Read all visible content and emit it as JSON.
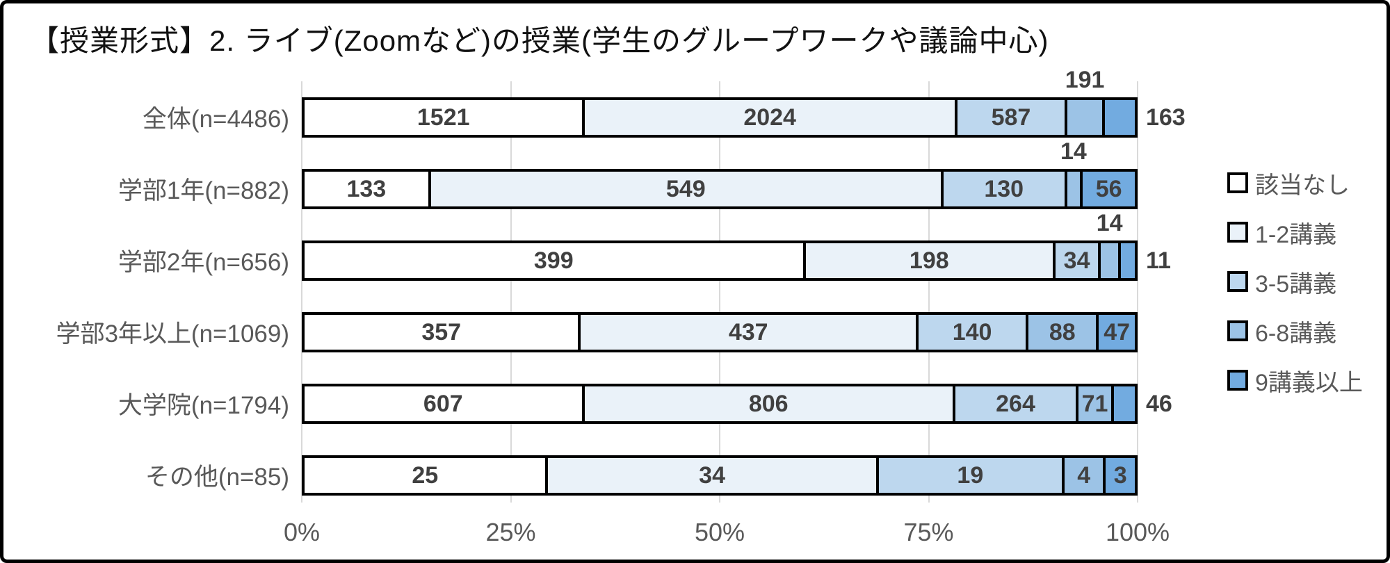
{
  "title": "【授業形式】2. ライブ(Zoomなど)の授業(学生のグループワークや議論中心)",
  "chart_data": {
    "type": "bar",
    "stacked": true,
    "orientation": "horizontal",
    "percent_axis": true,
    "grid": true,
    "legend_position": "right",
    "title": "【授業形式】2. ライブ(Zoomなど)の授業(学生のグループワークや議論中心)",
    "categories": [
      "全体(n=4486)",
      "学部1年(n=882)",
      "学部2年(n=656)",
      "学部3年以上(n=1069)",
      "大学院(n=1794)",
      "その他(n=85)"
    ],
    "category_totals": [
      4486,
      882,
      656,
      1069,
      1794,
      85
    ],
    "series": [
      {
        "name": "該当なし",
        "color": "#ffffff",
        "values": [
          1521,
          133,
          399,
          357,
          607,
          25
        ]
      },
      {
        "name": "1-2講義",
        "color": "#eaf2f9",
        "values": [
          2024,
          549,
          198,
          437,
          806,
          34
        ]
      },
      {
        "name": "3-5講義",
        "color": "#bdd7ee",
        "values": [
          587,
          130,
          34,
          140,
          264,
          19
        ]
      },
      {
        "name": "6-8講義",
        "color": "#9cc3e6",
        "values": [
          191,
          14,
          14,
          88,
          71,
          4
        ]
      },
      {
        "name": "9講義以上",
        "color": "#72abe0",
        "values": [
          163,
          56,
          11,
          47,
          46,
          3
        ]
      }
    ],
    "label_placements": [
      [
        "in",
        "in",
        "in",
        "above",
        "right"
      ],
      [
        "in",
        "in",
        "in",
        "above",
        "in"
      ],
      [
        "in",
        "in",
        "in",
        "above",
        "right"
      ],
      [
        "in",
        "in",
        "in",
        "in",
        "in"
      ],
      [
        "in",
        "in",
        "in",
        "in",
        "right"
      ],
      [
        "in",
        "in",
        "in",
        "in",
        "in"
      ]
    ],
    "x_ticks": [
      "0%",
      "25%",
      "50%",
      "75%",
      "100%"
    ],
    "xlim": [
      0,
      100
    ],
    "colors": {
      "gridline": "#d9d9d9",
      "bar_border": "#000000",
      "value_label": "#404040",
      "axis_text": "#595959",
      "frame_border": "#000000"
    }
  }
}
